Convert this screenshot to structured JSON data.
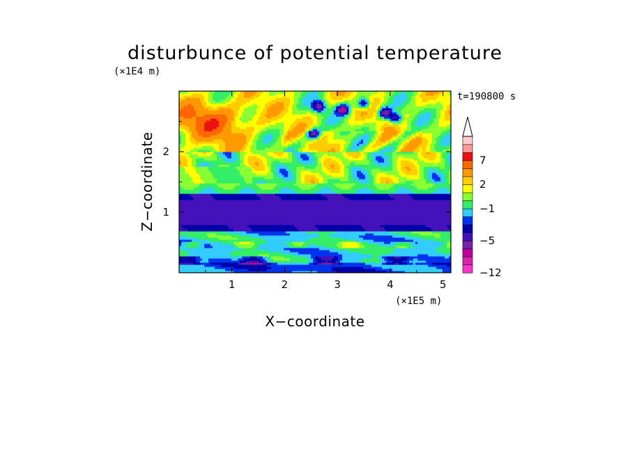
{
  "chart_data": {
    "type": "heatmap",
    "title": "disturbunce of potential temperature",
    "xlabel": "X−coordinate",
    "ylabel": "Z−coordinate",
    "x_unit": "(×1E5 m)",
    "y_unit": "(×1E4 m)",
    "time_label": "t=190800 s",
    "xlim": [
      0,
      5.15
    ],
    "ylim": [
      0,
      3.0
    ],
    "x_ticks": [
      "1",
      "2",
      "3",
      "4",
      "5"
    ],
    "y_ticks": [
      "1",
      "2"
    ],
    "colorbar": {
      "labels": [
        "7",
        "2",
        "−1",
        "−5",
        "−12"
      ],
      "levels": [
        -12,
        -10,
        -8,
        -6,
        -5,
        -4,
        -3,
        -2,
        -1,
        0,
        1,
        2,
        3,
        5,
        7,
        9,
        11
      ],
      "colors": [
        "#ff33cc",
        "#dd22aa",
        "#bb0099",
        "#7722aa",
        "#4411bb",
        "#0000aa",
        "#0033ee",
        "#33ccff",
        "#33ee66",
        "#88ff33",
        "#ffff00",
        "#ffcc00",
        "#ff9900",
        "#ff6600",
        "#ee1111",
        "#ff9999",
        "#ffcccc"
      ],
      "extend": "max"
    },
    "layers": [
      {
        "z_range": [
          2.0,
          2.9
        ],
        "description": "warm anomalies 1 to 5, max near x=0.5 z=2.5"
      },
      {
        "z_range": [
          1.5,
          2.0
        ],
        "description": "mixed near-zero and warm wave patterns"
      },
      {
        "z_range": [
          1.3,
          1.5
        ],
        "description": "near zero to -1"
      },
      {
        "z_range": [
          0.7,
          1.3
        ],
        "description": "strong cold band -5 to -4"
      },
      {
        "z_range": [
          0.0,
          0.7
        ],
        "description": "mostly -2 to 0 with cold patches"
      }
    ]
  }
}
